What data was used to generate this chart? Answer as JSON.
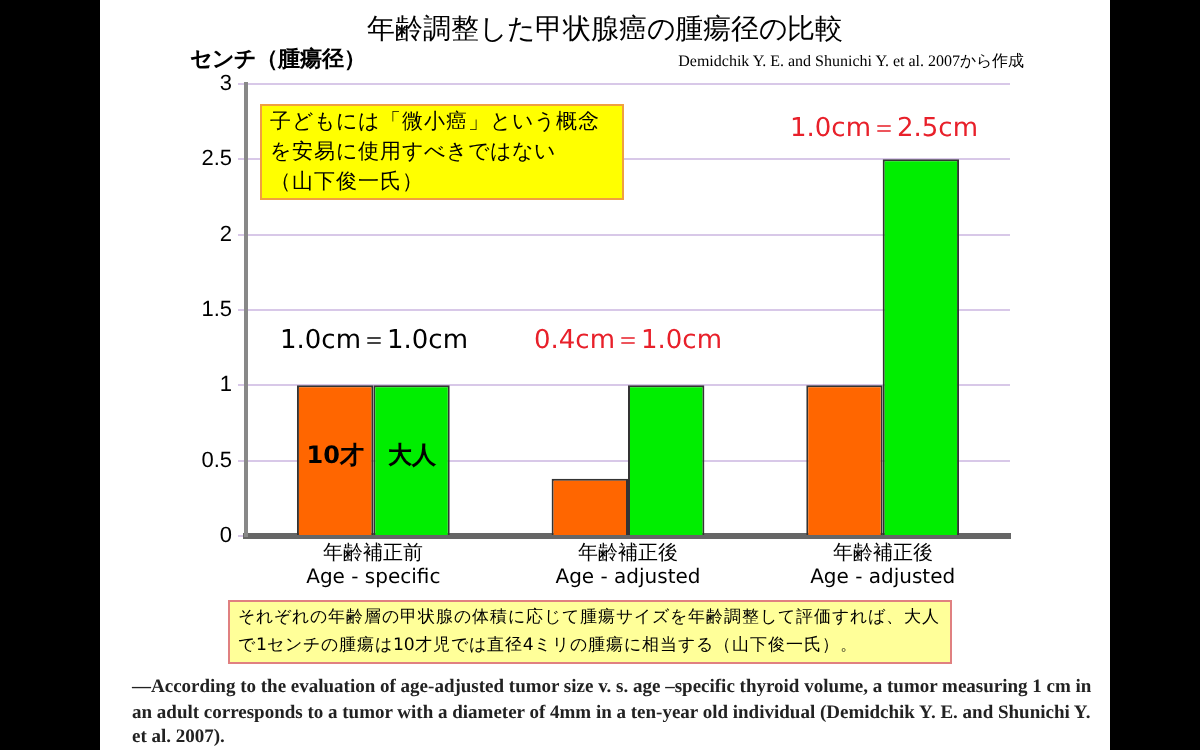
{
  "chart_data": {
    "type": "bar",
    "title": "年齢調整した甲状腺癌の腫瘍径の比較",
    "ylabel": "センチ（腫瘍径）",
    "categories": [
      "年齢補正前\nAge - specific",
      "年齢補正後\nAge - adjusted",
      "年齢補正後\nAge - adjusted"
    ],
    "series": [
      {
        "name": "10才",
        "color": "#ff6600",
        "values": [
          1,
          0.38,
          1
        ]
      },
      {
        "name": "大人",
        "color": "#00ee00",
        "values": [
          1,
          1,
          2.5
        ]
      }
    ],
    "ylim": [
      0,
      3
    ],
    "yticks": [
      0,
      0.5,
      1,
      1.5,
      2,
      2.5,
      3
    ],
    "grid": "y",
    "legend": false,
    "annotations": [
      "Demidchik Y. E. and Shunichi Y. et al. 2007から作成",
      "子どもには「微小癌」という概念を安易に使用すべきではない",
      "（山下俊一氏）",
      "1.0cm＝1.0cm",
      "0.4cm＝1.0cm",
      "1.0cm＝2.5cm",
      "それぞれの年齢層の甲状腺の体積に応じて腫瘍サイズを年齢調整して評価すれば、大人で1センチの腫瘍は10才児では直径4ミリの腫瘍に相当する（山下俊一氏）。",
      "—According to the evaluation of age-adjusted tumor size v. s. age –specific thyroid volume,  a tumor measuring 1 cm  in an adult corresponds to a tumor with a diameter of 4mm in a ten-year old individual (Demidchik Y. E. and Shunichi Y. et al. 2007)."
    ]
  }
}
